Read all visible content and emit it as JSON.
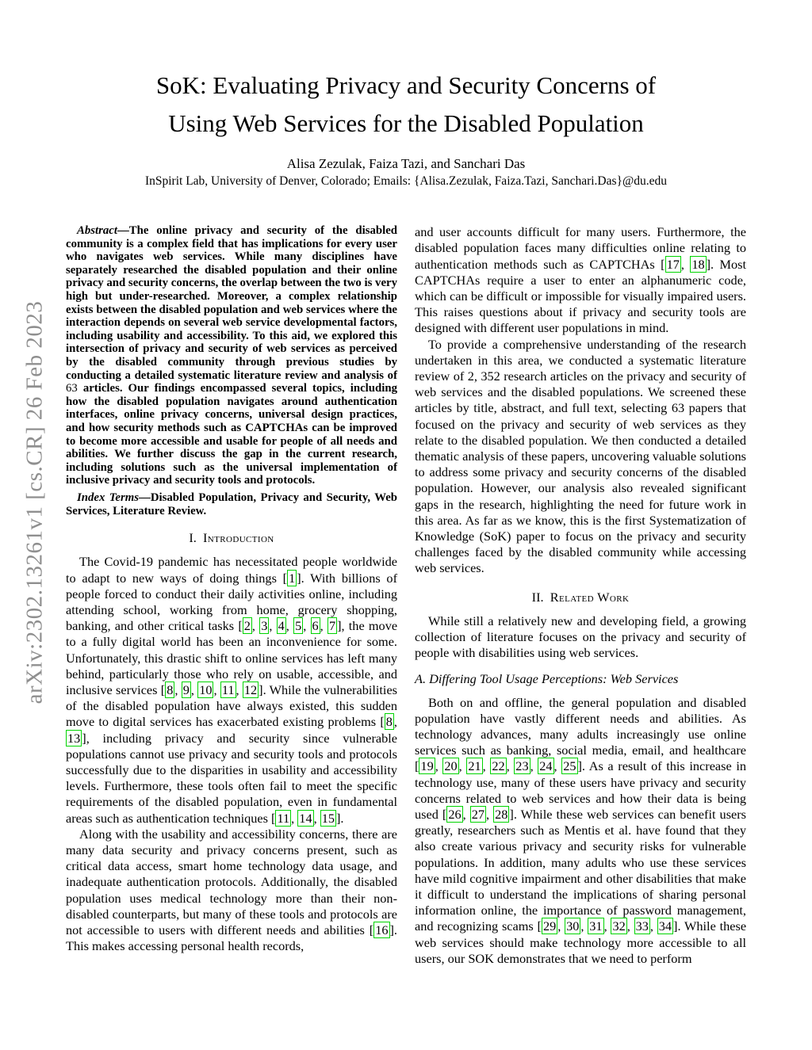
{
  "watermark": "arXiv:2302.13261v1  [cs.CR]  26 Feb 2023",
  "accent_colors": {
    "citation_box": "#00d400",
    "watermark_gray": "#8f8f8f"
  },
  "header": {
    "title_line1": "SoK: Evaluating Privacy and Security Concerns of",
    "title_line2": "Using Web Services for the Disabled Population",
    "authors": "Alisa Zezulak, Faiza Tazi, and Sanchari Das",
    "affiliation": "InSpirit Lab, University of Denver, Colorado; Emails: {Alisa.Zezulak, Faiza.Tazi, Sanchari.Das}@du.edu"
  },
  "left_column": [
    {
      "kind": "abstract",
      "label": "Abstract",
      "text": "—The online privacy and security of the disabled community is a complex field that has implications for every user who navigates web services. While many disciplines have separately researched the disabled population and their online privacy and security concerns, the overlap between the two is very high but under-researched. Moreover, a complex relationship exists between the disabled population and web services where the interaction depends on several web service developmental factors, including usability and accessibility. To this aid, we explored this intersection of privacy and security of web services as perceived by the disabled community through previous studies by conducting a detailed systematic literature review and analysis of ~63~ articles. Our findings encompassed several topics, including how the disabled population navigates around authentication interfaces, online privacy concerns, universal design practices, and how security methods such as CAPTCHAs can be improved to become more accessible and usable for people of all needs and abilities. We further discuss the gap in the current research, including solutions such as the universal implementation of inclusive privacy and security tools and protocols."
    },
    {
      "kind": "index_terms",
      "label": "Index Terms",
      "text": "—Disabled Population, Privacy and Security, Web Services, Literature Review."
    },
    {
      "kind": "section",
      "number": "I.",
      "title": "Introduction"
    },
    {
      "kind": "para",
      "indent": true,
      "text": "The Covid-19 pandemic has necessitated people worldwide to adapt to new ways of doing things [{{1}}]. With billions of people forced to conduct their daily activities online, including attending school, working from home, grocery shopping, banking, and other critical tasks [{{2}}, {{3}}, {{4}}, {{5}}, {{6}}, {{7}}], the move to a fully digital world has been an inconvenience for some. Unfortunately, this drastic shift to online services has left many behind, particularly those who rely on usable, accessible, and inclusive services [{{8}}, {{9}}, {{10}}, {{11}}, {{12}}]. While the vulnerabilities of the disabled population have always existed, this sudden move to digital services has exacerbated existing problems [{{8}}, {{13}}], including privacy and security since vulnerable populations cannot use privacy and security tools and protocols successfully due to the disparities in usability and accessibility levels. Furthermore, these tools often fail to meet the specific requirements of the disabled population, even in fundamental areas such as authentication techniques [{{11}}, {{14}}, {{15}}]."
    },
    {
      "kind": "para",
      "indent": true,
      "text": "Along with the usability and accessibility concerns, there are many data security and privacy concerns present, such as critical data access, smart home technology data usage, and inadequate authentication protocols. Additionally, the disabled population uses medical technology more than their non-disabled counterparts, but many of these tools and protocols are not accessible to users with different needs and abilities [{{16}}]. This makes accessing personal health records,"
    }
  ],
  "right_column": [
    {
      "kind": "para",
      "indent": false,
      "text": "and user accounts difficult for many users. Furthermore, the disabled population faces many difficulties online relating to authentication methods such as CAPTCHAs [{{17}}, {{18}}]. Most CAPTCHAs require a user to enter an alphanumeric code, which can be difficult or impossible for visually impaired users. This raises questions about if privacy and security tools are designed with different user populations in mind."
    },
    {
      "kind": "para",
      "indent": true,
      "text": "To provide a comprehensive understanding of the research undertaken in this area, we conducted a systematic literature review of 2, 352 research articles on the privacy and security of web services and the disabled populations. We screened these articles by title, abstract, and full text, selecting 63 papers that focused on the privacy and security of web services as they relate to the disabled population. We then conducted a detailed thematic analysis of these papers, uncovering valuable solutions to address some privacy and security concerns of the disabled population. However, our analysis also revealed significant gaps in the research, highlighting the need for future work in this area. As far as we know, this is the first Systematization of Knowledge (SoK) paper to focus on the privacy and security challenges faced by the disabled community while accessing web services."
    },
    {
      "kind": "section",
      "number": "II.",
      "title": "Related Work"
    },
    {
      "kind": "para",
      "indent": true,
      "text": "While still a relatively new and developing field, a growing collection of literature focuses on the privacy and security of people with disabilities using web services."
    },
    {
      "kind": "subsection",
      "label": "A.",
      "title": "Differing Tool Usage Perceptions: Web Services"
    },
    {
      "kind": "para",
      "indent": true,
      "text": "Both on and offline, the general population and disabled population have vastly different needs and abilities. As technology advances, many adults increasingly use online services such as banking, social media, email, and healthcare [{{19}}, {{20}}, {{21}}, {{22}}, {{23}}, {{24}}, {{25}}]. As a result of this increase in technology use, many of these users have privacy and security concerns related to web services and how their data is being used [{{26}}, {{27}}, {{28}}]. While these web services can benefit users greatly, researchers such as Mentis et al. have found that they also create various privacy and security risks for vulnerable populations. In addition, many adults who use these services have mild cognitive impairment and other disabilities that make it difficult to understand the implications of sharing personal information online, the importance of password management, and recognizing scams [{{29}}, {{30}}, {{31}}, {{32}}, {{33}}, {{34}}]. While these web services should make technology more accessible to all users, our SOK demonstrates that we need to perform"
    }
  ]
}
